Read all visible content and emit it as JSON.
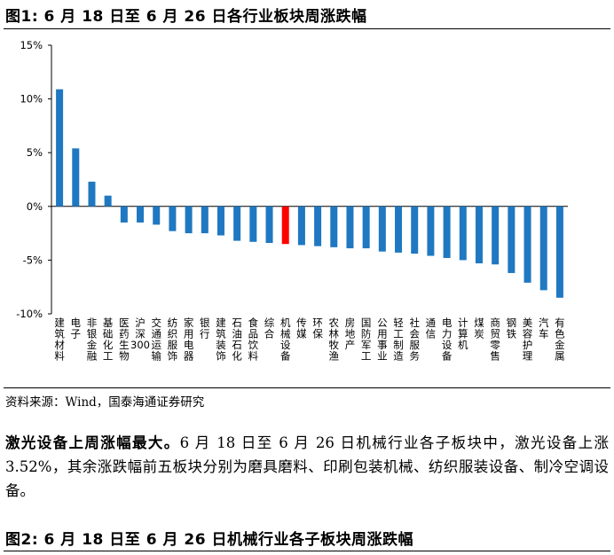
{
  "figure1": {
    "title": "图1:  6 月 18 日至 6 月 26 日各行业板块周涨跌幅"
  },
  "chart_data": {
    "type": "bar",
    "title": "",
    "xlabel": "",
    "ylabel": "",
    "ylim": [
      -10,
      15
    ],
    "yticks": [
      "15%",
      "10%",
      "5%",
      "0%",
      "-5%",
      "-10%"
    ],
    "ytick_values": [
      15,
      10,
      5,
      0,
      -5,
      -10
    ],
    "grid": false,
    "legend": "none",
    "categories": [
      "建筑材料",
      "电子",
      "非银金融",
      "基础化工",
      "医药生物",
      "沪深300",
      "交通运输",
      "纺织服饰",
      "家用电器",
      "银行",
      "建筑装饰",
      "石油石化",
      "食品饮料",
      "综合",
      "机械设备",
      "传媒",
      "环保",
      "农林牧渔",
      "房地产",
      "国防军工",
      "公用事业",
      "轻工制造",
      "社会服务",
      "通信",
      "电力设备",
      "计算机",
      "煤炭",
      "商贸零售",
      "钢铁",
      "美容护理",
      "汽车",
      "有色金属"
    ],
    "values": [
      10.9,
      5.4,
      2.3,
      1.0,
      -1.5,
      -1.5,
      -1.7,
      -2.3,
      -2.5,
      -2.5,
      -2.7,
      -3.2,
      -3.3,
      -3.4,
      -3.5,
      -3.6,
      -3.7,
      -3.8,
      -3.9,
      -3.9,
      -4.2,
      -4.3,
      -4.4,
      -4.6,
      -4.8,
      -5.0,
      -5.3,
      -5.4,
      -6.2,
      -7.1,
      -7.8,
      -8.5
    ],
    "highlight": "机械设备",
    "colors": {
      "default": "#1f78c1",
      "highlight": "#ff0000"
    }
  },
  "source": "资料来源：Wind，国泰海通证券研究",
  "paragraph": {
    "lead": "激光设备上周涨幅最大。",
    "body": "6 月 18 日至 6 月 26 日机械行业各子板块中，激光设备上涨 3.52%，其余涨跌幅前五板块分别为磨具磨料、印刷包装机械、纺织服装设备、制冷空调设备。"
  },
  "figure2": {
    "title": "图2:  6 月 18 日至 6 月 26 日机械行业各子板块周涨跌幅"
  }
}
